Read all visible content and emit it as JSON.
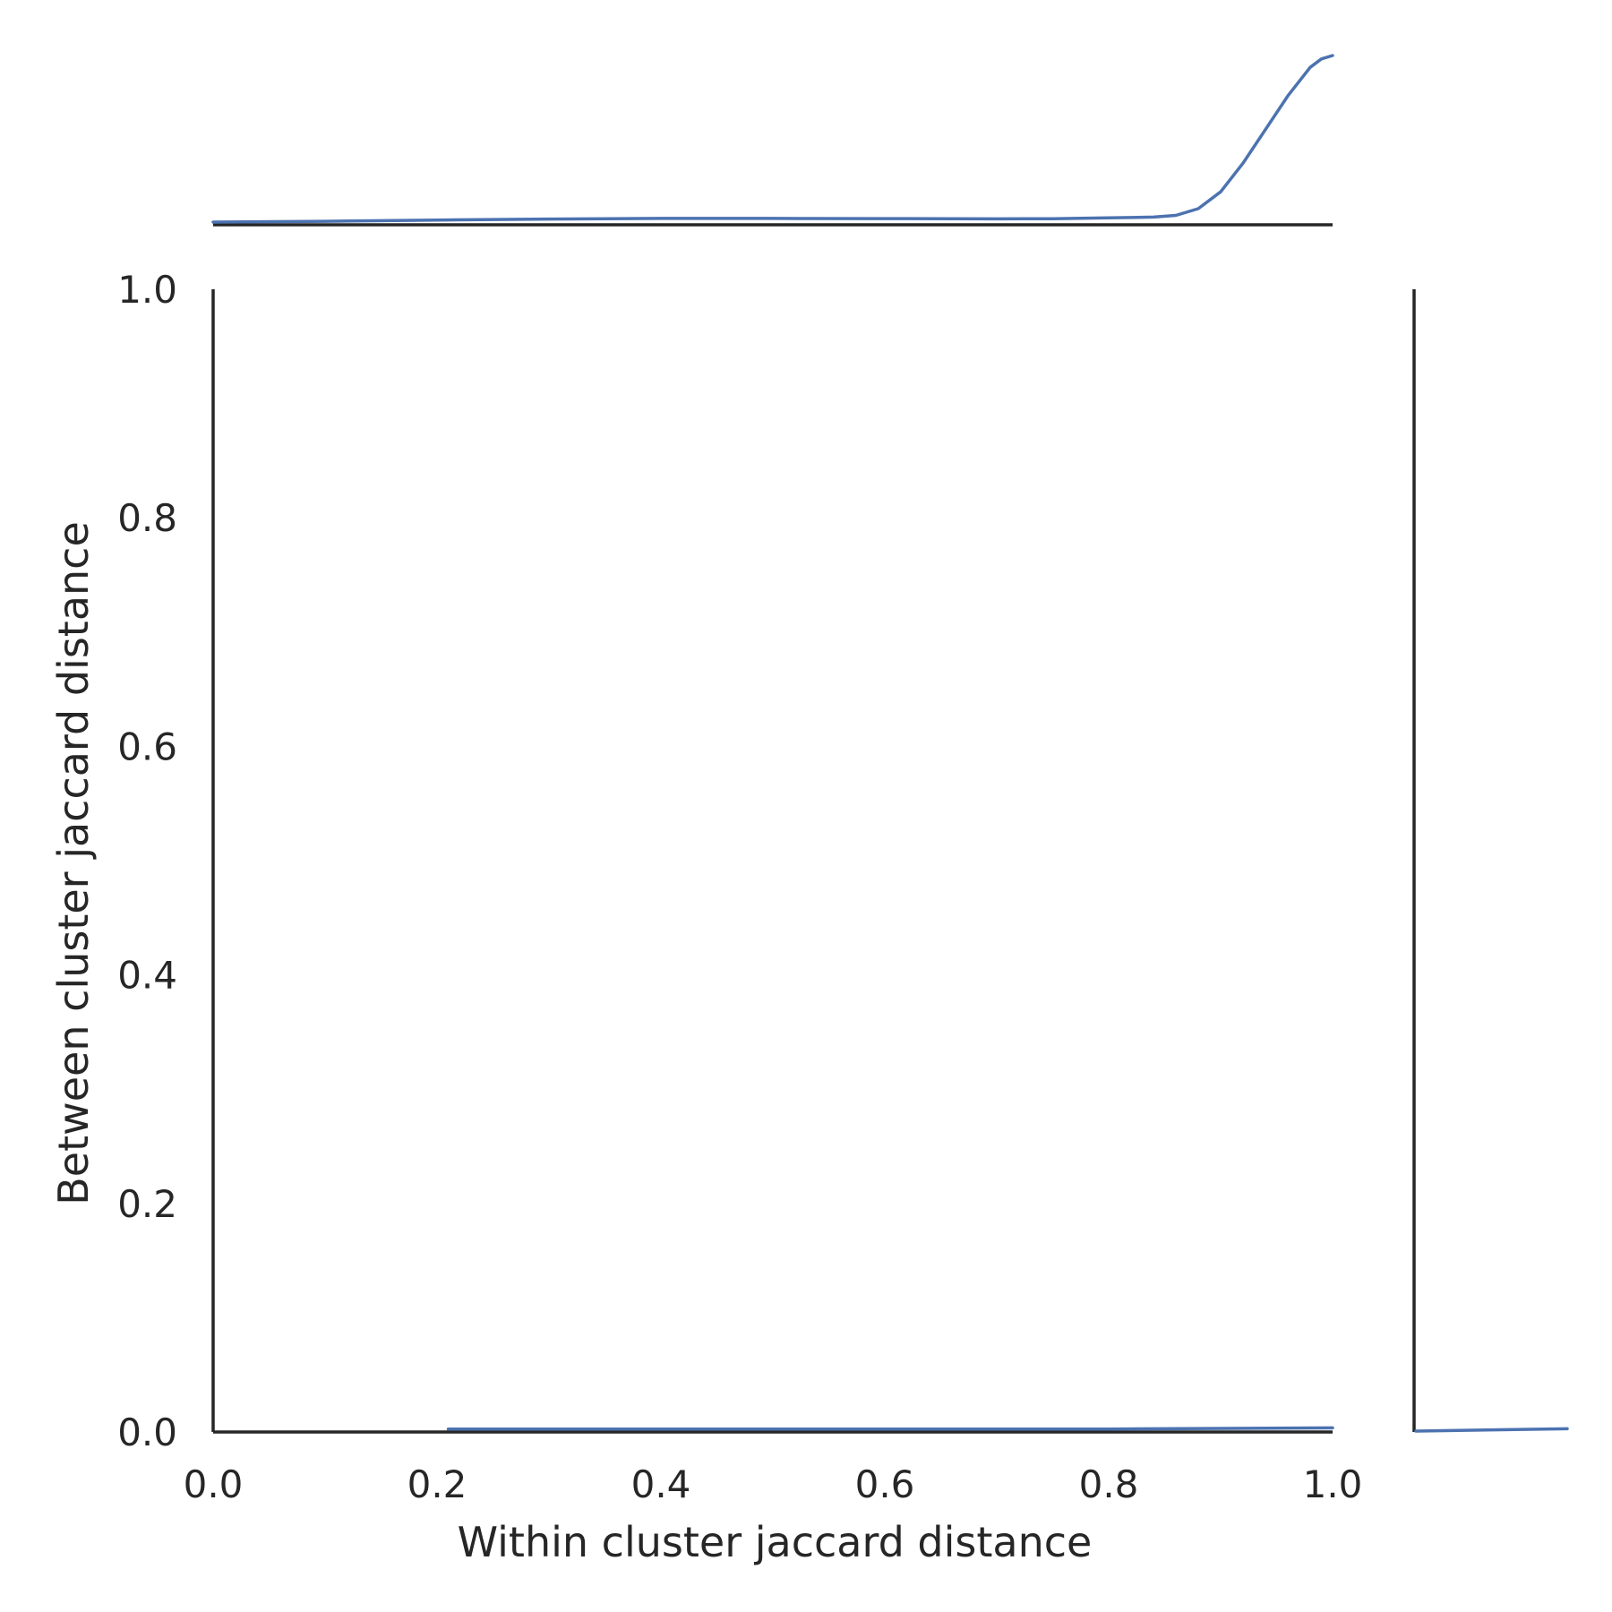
{
  "chart_data": {
    "type": "line",
    "xlabel": "Within cluster jaccard distance",
    "ylabel": "Between cluster jaccard distance",
    "xlim": [
      0.0,
      1.0
    ],
    "ylim": [
      0.0,
      1.0
    ],
    "xticks": [
      "0.0",
      "0.2",
      "0.4",
      "0.6",
      "0.8",
      "1.0"
    ],
    "yticks": [
      "0.0",
      "0.2",
      "0.4",
      "0.6",
      "0.8",
      "1.0"
    ],
    "grid": false,
    "color": "#4c72b0",
    "joint_curve": {
      "x": [
        0.21,
        0.4,
        0.6,
        0.8,
        1.0
      ],
      "y": [
        0.001,
        0.001,
        0.001,
        0.001,
        0.002
      ]
    },
    "marginal_x_density": {
      "x": [
        0.0,
        0.1,
        0.2,
        0.3,
        0.4,
        0.5,
        0.6,
        0.7,
        0.75,
        0.8,
        0.84,
        0.86,
        0.88,
        0.9,
        0.92,
        0.94,
        0.96,
        0.98,
        0.99,
        1.0
      ],
      "density": [
        0.0,
        0.005,
        0.012,
        0.018,
        0.022,
        0.022,
        0.021,
        0.019,
        0.02,
        0.025,
        0.03,
        0.04,
        0.08,
        0.18,
        0.35,
        0.55,
        0.75,
        0.92,
        0.97,
        0.99
      ]
    },
    "marginal_y_density": {
      "y": [
        0.0,
        0.002
      ],
      "density": [
        0.0,
        1.0
      ]
    }
  }
}
